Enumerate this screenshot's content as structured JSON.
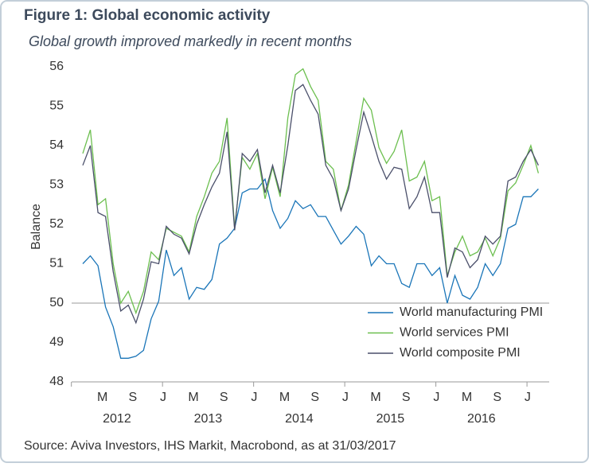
{
  "chart_data": {
    "type": "line",
    "title": "Figure 1: Global economic activity",
    "subtitle": "Global growth improved markedly in recent months",
    "y_label": "Balance",
    "source": "Source: Aviva Investors, IHS Markit, Macrobond, as at 31/03/2017",
    "categories": [
      null,
      null,
      null,
      "M",
      null,
      null,
      null,
      "S",
      null,
      null,
      null,
      "J",
      null,
      null,
      null,
      "M",
      null,
      null,
      null,
      "S",
      null,
      null,
      null,
      "J",
      null,
      null,
      null,
      "M",
      null,
      null,
      null,
      "S",
      null,
      null,
      null,
      "J",
      null,
      null,
      null,
      "M",
      null,
      null,
      null,
      "S",
      null,
      null,
      null,
      "J",
      null,
      null,
      null,
      "M",
      null,
      null,
      null,
      "S",
      null,
      null,
      null,
      "J",
      null
    ],
    "x_groups": [
      "2012",
      "2013",
      "2014",
      "2015",
      "2016"
    ],
    "ylim": [
      48,
      56
    ],
    "yticks": [
      48,
      49,
      50,
      51,
      52,
      53,
      54,
      55,
      56
    ],
    "reference_line": 50,
    "legend": "bottom-right",
    "series": [
      {
        "name": "World manufacturing PMI",
        "color": "#1a75b8",
        "values": [
          51.0,
          51.2,
          50.95,
          49.9,
          49.4,
          48.6,
          48.6,
          48.65,
          48.8,
          49.6,
          50.05,
          51.35,
          50.7,
          50.9,
          50.1,
          50.4,
          50.35,
          50.6,
          51.5,
          51.65,
          51.9,
          52.8,
          52.9,
          52.9,
          53.15,
          52.35,
          51.9,
          52.15,
          52.6,
          52.4,
          52.5,
          52.2,
          52.2,
          51.85,
          51.5,
          51.7,
          51.95,
          51.75,
          50.95,
          51.2,
          51.0,
          51.0,
          50.5,
          50.4,
          51.0,
          51.0,
          50.7,
          50.9,
          50.0,
          50.7,
          50.2,
          50.1,
          50.4,
          51.0,
          50.7,
          51.0,
          51.9,
          52.0,
          52.7,
          52.7,
          52.9
        ]
      },
      {
        "name": "World services PMI",
        "color": "#6cbf4f",
        "values": [
          53.8,
          54.4,
          52.5,
          52.65,
          51.0,
          50.0,
          50.3,
          49.75,
          50.3,
          51.3,
          51.1,
          51.9,
          51.8,
          51.7,
          51.3,
          52.2,
          52.7,
          53.3,
          53.6,
          54.7,
          51.9,
          53.7,
          53.4,
          53.8,
          52.65,
          53.45,
          52.7,
          54.7,
          55.8,
          55.95,
          55.5,
          55.15,
          53.6,
          53.4,
          52.35,
          53.0,
          54.1,
          55.2,
          54.9,
          53.95,
          53.55,
          53.85,
          54.4,
          53.1,
          53.2,
          53.6,
          52.6,
          52.7,
          50.7,
          51.3,
          51.7,
          51.2,
          51.3,
          51.65,
          51.2,
          51.65,
          52.85,
          53.05,
          53.5,
          54.0,
          53.3
        ]
      },
      {
        "name": "World composite PMI",
        "color": "#4a4f6a",
        "values": [
          53.5,
          54.0,
          52.3,
          52.2,
          50.8,
          49.8,
          49.95,
          49.5,
          50.1,
          51.05,
          51.0,
          51.95,
          51.75,
          51.65,
          51.25,
          52.0,
          52.5,
          52.95,
          53.3,
          54.35,
          51.85,
          53.8,
          53.6,
          53.9,
          52.8,
          53.5,
          52.8,
          54.0,
          55.4,
          55.55,
          55.15,
          54.8,
          53.5,
          53.15,
          52.35,
          52.9,
          53.9,
          54.85,
          54.25,
          53.6,
          53.15,
          53.45,
          53.4,
          52.4,
          52.7,
          53.2,
          52.3,
          52.3,
          50.65,
          51.4,
          51.3,
          50.9,
          51.1,
          51.7,
          51.5,
          51.7,
          53.1,
          53.2,
          53.6,
          53.9,
          53.5
        ]
      }
    ]
  }
}
